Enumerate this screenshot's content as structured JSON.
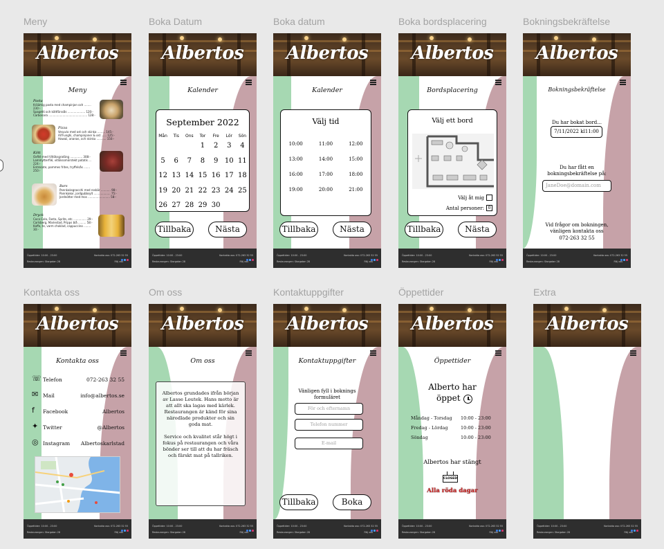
{
  "brand": "Albertos",
  "frames": {
    "meny": {
      "title": "Meny",
      "heading": "Meny",
      "sections": [
        {
          "name": "Pasta",
          "lines": [
            "Kräämig pasta med champinjon och ........ 230:-",
            "Spagetti och köttfärssås .................... 120:-",
            "Carbonara ............................................ 128:-"
          ]
        },
        {
          "name": "Pizza",
          "lines": [
            "Vesuvio med ost och skinka ......... 145:-",
            "All'Funghi, champinjoner & ost ...... 125:-",
            "Hawaii, ananas, och skinka ........... 150:-"
          ]
        },
        {
          "name": "Kött",
          "lines": [
            "Oxfilé med Vitlöksgratäng .............. 308:-",
            "Lammytterfilé, vitlökssmörstekt potatis ... 224:-",
            "Entrecote, pommes frites, tryffelsås ....... 250:-"
          ]
        },
        {
          "name": "Bars",
          "lines": [
            "Pannkaksgnocchi med rosbär ........... 98:-",
            "Pannkakor, jordgubbsylt ................... 75:-",
            "Jordnötter med mos ......................... 58:-"
          ]
        },
        {
          "name": "Dryck",
          "lines": [
            "Coca Cola, Fanta, Sprite, etc. .............. 29:-",
            "Carlsberg, Mariestad, Pripps blå ......... 58:-",
            "Kaffe, te, varm choklad, cappuccino ........ 30:-"
          ]
        }
      ]
    },
    "boka_datum": {
      "title": "Boka Datum",
      "heading": "Kalender",
      "month": "September 2022",
      "weekdays": [
        "Mån",
        "Tis",
        "Ons",
        "Tor",
        "Fre",
        "Lör",
        "Sön"
      ],
      "weeks": [
        [
          "",
          "",
          "",
          "1",
          "2",
          "3",
          "4"
        ],
        [
          "5",
          "6",
          "7",
          "8",
          "9",
          "10",
          "11"
        ],
        [
          "12",
          "13",
          "14",
          "15",
          "16",
          "17",
          "18"
        ],
        [
          "19",
          "20",
          "21",
          "22",
          "23",
          "24",
          "25"
        ],
        [
          "26",
          "27",
          "28",
          "29",
          "30",
          "",
          ""
        ]
      ],
      "back": "Tillbaka",
      "next": "Nästa"
    },
    "boka_tid": {
      "title": "Boka datum",
      "heading": "Kalender",
      "card_title": "Välj tid",
      "times": [
        [
          "10:00",
          "11:00",
          "12:00"
        ],
        [
          "13:00",
          "14:00",
          "15:00"
        ],
        [
          "16:00",
          "17:00",
          "18:00"
        ],
        [
          "19:00",
          "20:00",
          "21:00"
        ]
      ],
      "back": "Tillbaka",
      "next": "Nästa"
    },
    "bord": {
      "title": "Boka bordsplacering",
      "heading": "Bordsplacering",
      "card_title": "Välj ett bord",
      "pick_for_me": "Välj åt mig",
      "persons_label": "Antal personer:",
      "persons_value": "0",
      "back": "Tillbaka",
      "next": "Nästa"
    },
    "bekraftelse": {
      "title": "Bokningsbekräftelse",
      "heading": "Bokningsbekräftelse",
      "booked_text": "Du har bokat bord...",
      "booked_value": "7/11/2022 kl11:00",
      "confirm_text": "Du har fått en bokningsbekräftelse på:",
      "email_value": "JaneDoe@domain.com",
      "contact_text": "Vid frågor om bokningen, vänligen kontakta oss",
      "phone": "072-263 32 55"
    },
    "kontakta": {
      "title": "Kontakta oss",
      "heading": "Kontakta oss",
      "rows": [
        {
          "icon": "phone-icon",
          "label": "Telefon",
          "value": "072-263 32 55"
        },
        {
          "icon": "mail-icon",
          "label": "Mail",
          "value": "info@albertos.se"
        },
        {
          "icon": "facebook-icon",
          "label": "Facebook",
          "value": "Albertos"
        },
        {
          "icon": "twitter-icon",
          "label": "Twitter",
          "value": "@Albertos"
        },
        {
          "icon": "instagram-icon",
          "label": "Instagram",
          "value": "Albertoskarlstad"
        }
      ]
    },
    "om_oss": {
      "title": "Om oss",
      "heading": "Om oss",
      "para1": "Albertos grundades ifrån början av Lasse Loutek. Hans motto är att allt ska lagas med kärlek. Restaurangen är känd för sina närodlade produkter och sin goda mat.",
      "para2": "Service och kvalitet står högt i fokus på restaurangen och våra bönder ser till att du har fräsch och färskt mat på tallriken."
    },
    "kontaktuppgifter": {
      "title": "Kontaktuppgifter",
      "heading": "Kontaktuppgifter",
      "intro": "Vänligen fyll i boknings formuläret",
      "ph_name": "För och efternamn",
      "ph_phone": "Telefon nummer",
      "ph_email": "E-mail",
      "back": "Tillbaka",
      "book": "Boka"
    },
    "oppettider": {
      "title": "Öppettider",
      "heading": "Öppettider",
      "open_line1": "Alberto har",
      "open_line2": "öppet",
      "rows": [
        {
          "days": "Måndag - Torsdag",
          "hours": "10:00 - 23:00"
        },
        {
          "days": "Fredag - Lördag",
          "hours": "10:00 - 23:00"
        },
        {
          "days": "Söndag",
          "hours": "10:00 - 23:00"
        }
      ],
      "closed_title": "Albertos har stängt",
      "closed_sign": "CLOSED",
      "closed_days": "Alla röda dagar"
    },
    "extra": {
      "title": "Extra"
    }
  },
  "footer": {
    "hours": "Öppettider: 10:00 - 23:00",
    "address": "Restaurangen: Storgatan 28",
    "contact": "Kontakta oss: 072-263 32 55",
    "follow": "Följ oss"
  },
  "colors": {
    "green": "#a6d8b2",
    "rose": "#c6a2a8",
    "footer": "#2e2e2e"
  }
}
